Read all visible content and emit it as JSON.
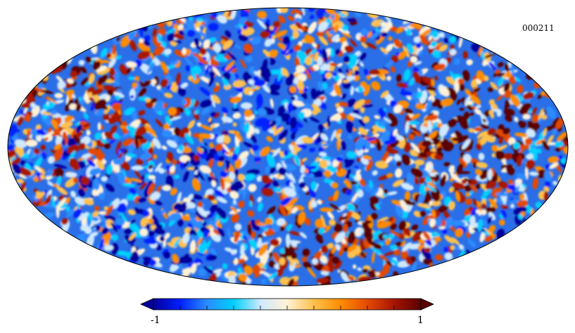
{
  "map": {
    "id_label": "000211",
    "projection": "mollweide",
    "colormap": [
      "#05009a",
      "#0020ff",
      "#2a8cff",
      "#00d0ff",
      "#cfe9ff",
      "#fff2d6",
      "#ffc14d",
      "#ff8c00",
      "#e34a00",
      "#a81500",
      "#5a0000"
    ]
  },
  "colorbar": {
    "min_label": "-1",
    "max_label": "1"
  }
}
